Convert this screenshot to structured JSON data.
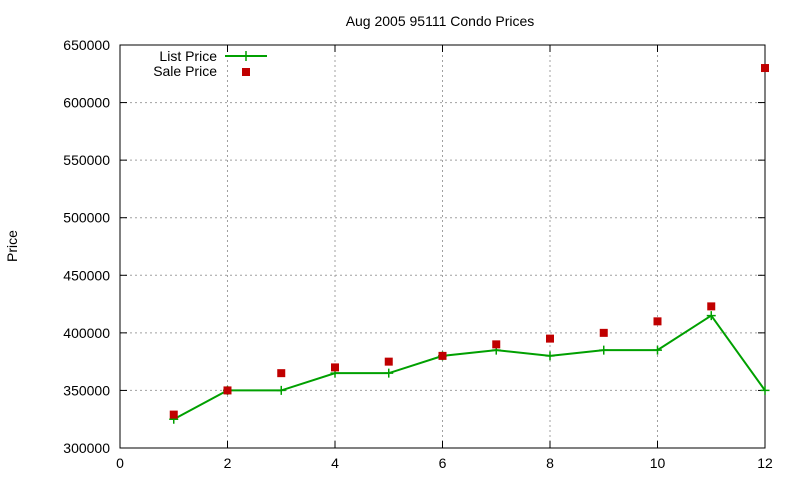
{
  "chart_data": {
    "type": "line",
    "title": "Aug 2005 95111 Condo Prices",
    "xlabel": "",
    "ylabel": "Price",
    "xlim": [
      0,
      12
    ],
    "ylim": [
      300000,
      650000
    ],
    "x_ticks": [
      0,
      2,
      4,
      6,
      8,
      10,
      12
    ],
    "y_ticks": [
      300000,
      350000,
      400000,
      450000,
      500000,
      550000,
      600000,
      650000
    ],
    "grid": true,
    "legend_position": "top-left",
    "series": [
      {
        "name": "List Price",
        "style": "line-with-plus-markers",
        "color": "#00a000",
        "x": [
          1,
          2,
          3,
          4,
          5,
          6,
          7,
          8,
          9,
          10,
          11,
          12
        ],
        "y": [
          325000,
          350000,
          350000,
          365000,
          365000,
          380000,
          385000,
          380000,
          385000,
          385000,
          415000,
          350000
        ]
      },
      {
        "name": "Sale Price",
        "style": "square-points",
        "color": "#c00000",
        "x": [
          1,
          2,
          3,
          4,
          5,
          6,
          7,
          8,
          9,
          10,
          11,
          12
        ],
        "y": [
          329000,
          350000,
          365000,
          370000,
          375000,
          380000,
          390000,
          395000,
          400000,
          410000,
          423000,
          630000
        ]
      }
    ]
  }
}
